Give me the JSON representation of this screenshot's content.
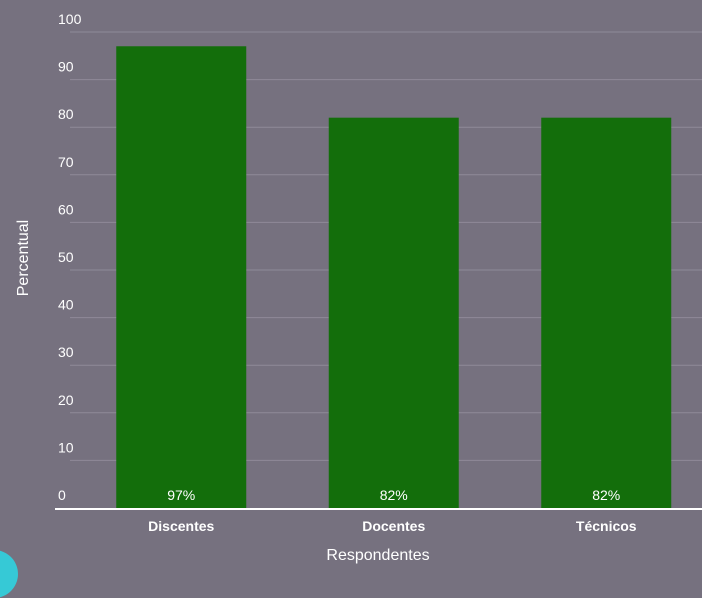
{
  "chart_data": {
    "type": "bar",
    "categories": [
      "Discentes",
      "Docentes",
      "Técnicos"
    ],
    "values": [
      97,
      82,
      82
    ],
    "value_labels": [
      "97%",
      "82%",
      "82%"
    ],
    "xlabel": "Respondentes",
    "ylabel": "Percentual",
    "ylim": [
      0,
      100
    ],
    "yticks": [
      "0",
      "10",
      "20",
      "30",
      "40",
      "50",
      "60",
      "70",
      "80",
      "90",
      "100"
    ],
    "grid": true,
    "colors": {
      "bar": "#136e0b",
      "background": "#76717f",
      "grid": "#8f8a98",
      "axis": "#ffffff",
      "text": "#ffffff"
    }
  }
}
